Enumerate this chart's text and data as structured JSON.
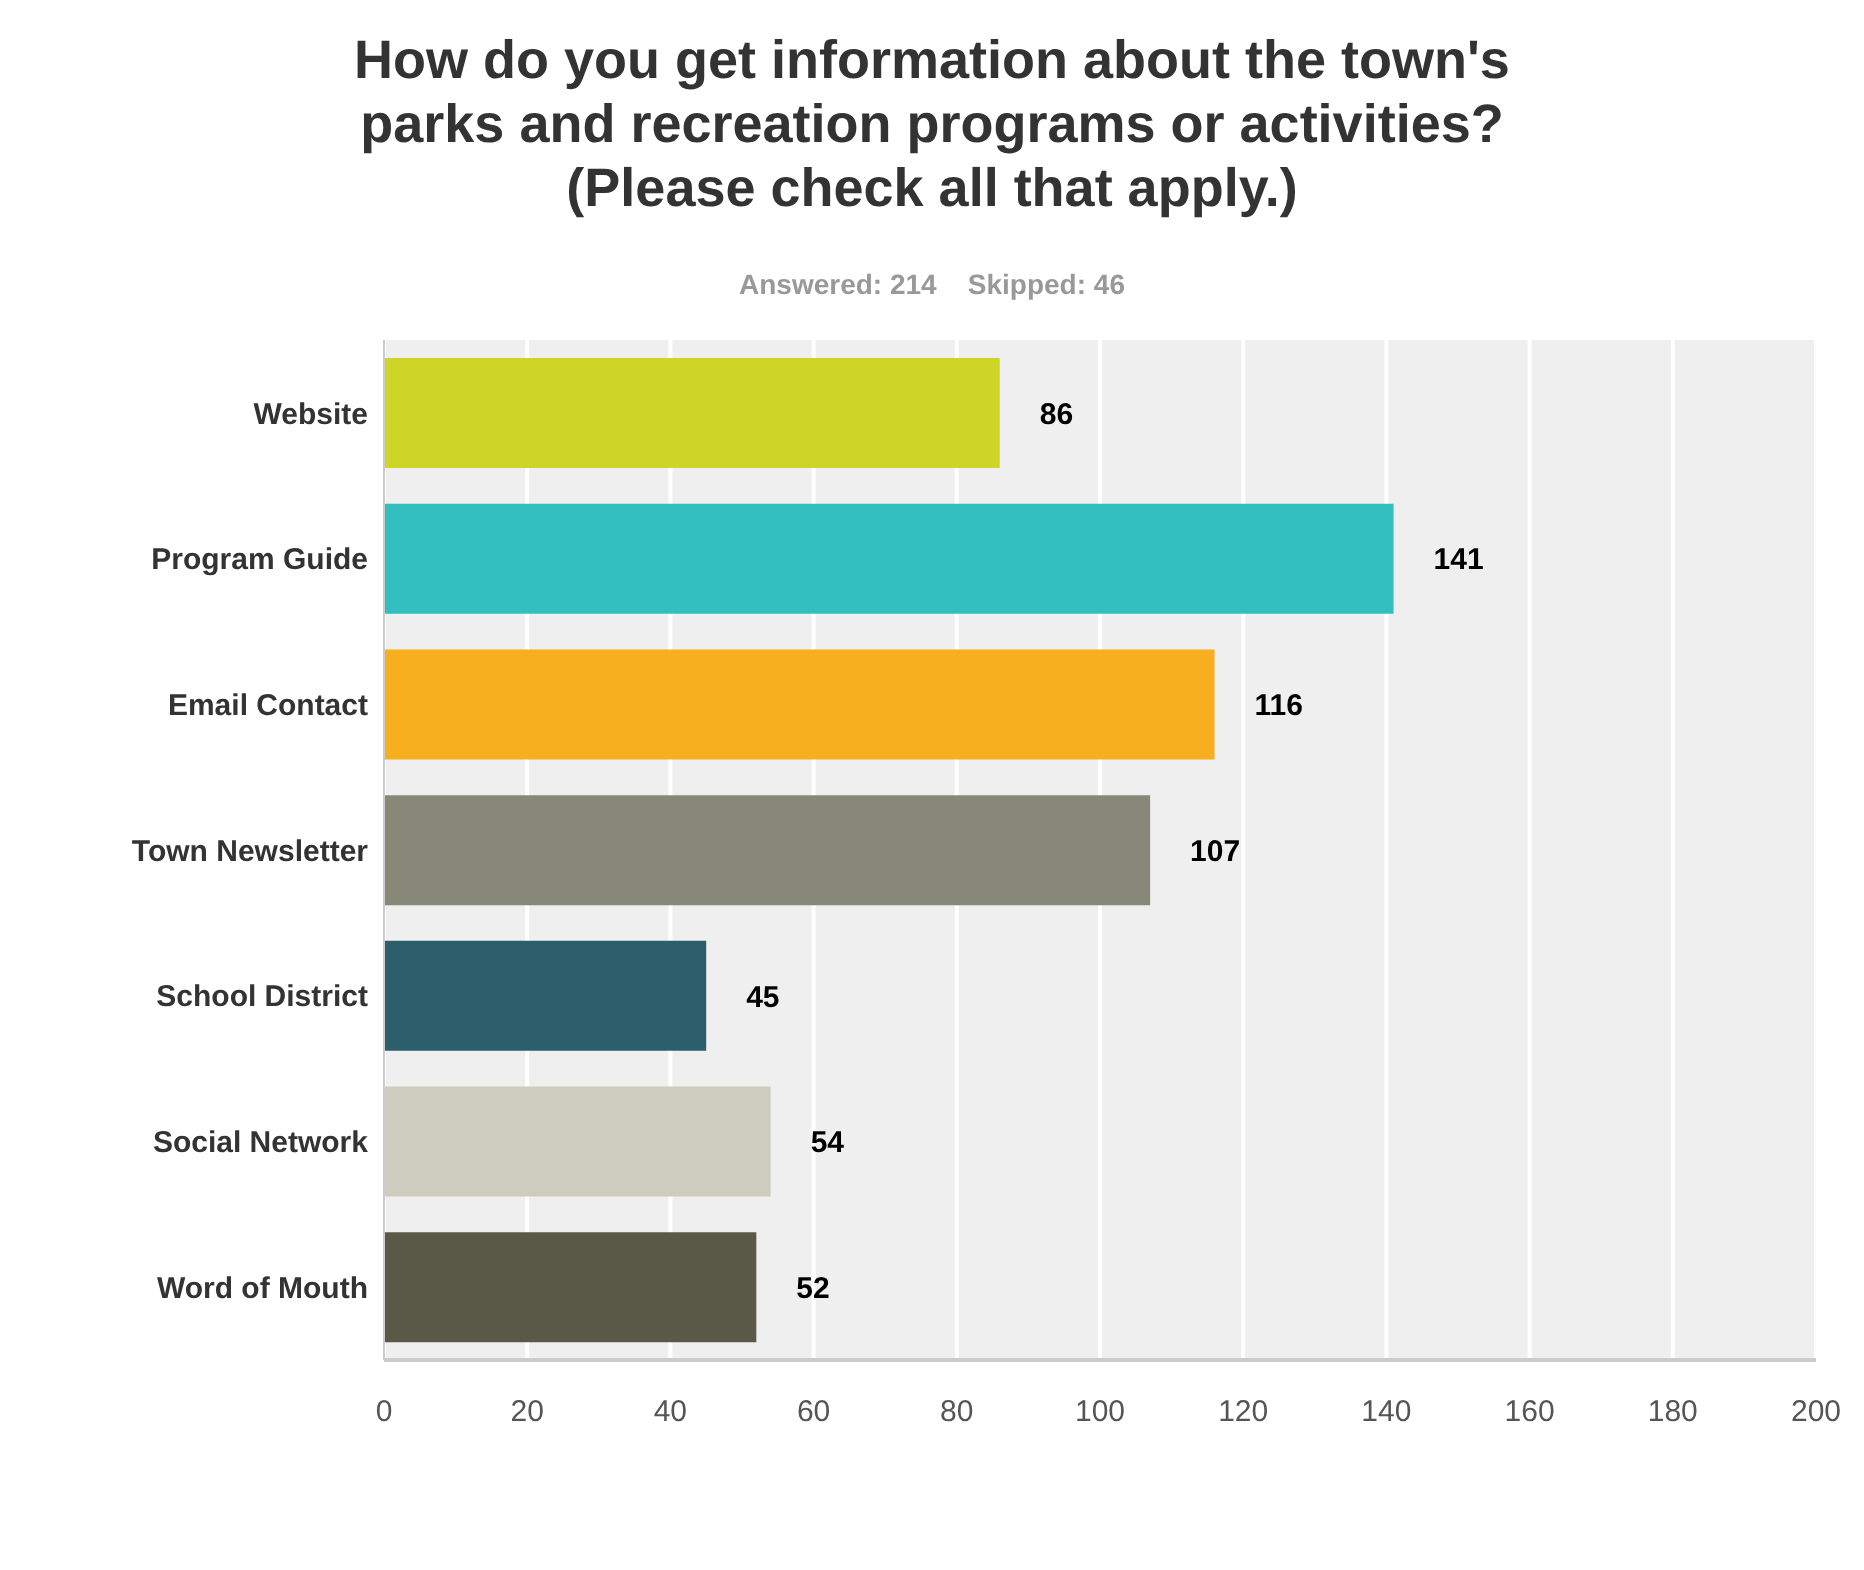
{
  "chart_data": {
    "type": "bar",
    "orientation": "horizontal",
    "title": "How do you get information about the town's parks and recreation programs or activities? (Please check all that apply.)",
    "subtitle": "Answered: 214    Skipped: 46",
    "categories": [
      "Website",
      "Program Guide",
      "Email Contact",
      "Town Newsletter",
      "School District",
      "Social Network",
      "Word of Mouth"
    ],
    "values": [
      86,
      141,
      116,
      107,
      45,
      54,
      52
    ],
    "colors": [
      "#cfd526",
      "#33bec0",
      "#f7ae1f",
      "#878878",
      "#2d5e6b",
      "#cdcdbf",
      "#5a5948"
    ],
    "xlim": [
      0,
      200
    ],
    "xticks": [
      0,
      20,
      40,
      60,
      80,
      100,
      120,
      140,
      160,
      180,
      200
    ],
    "grid": "x",
    "data_labels": true
  }
}
